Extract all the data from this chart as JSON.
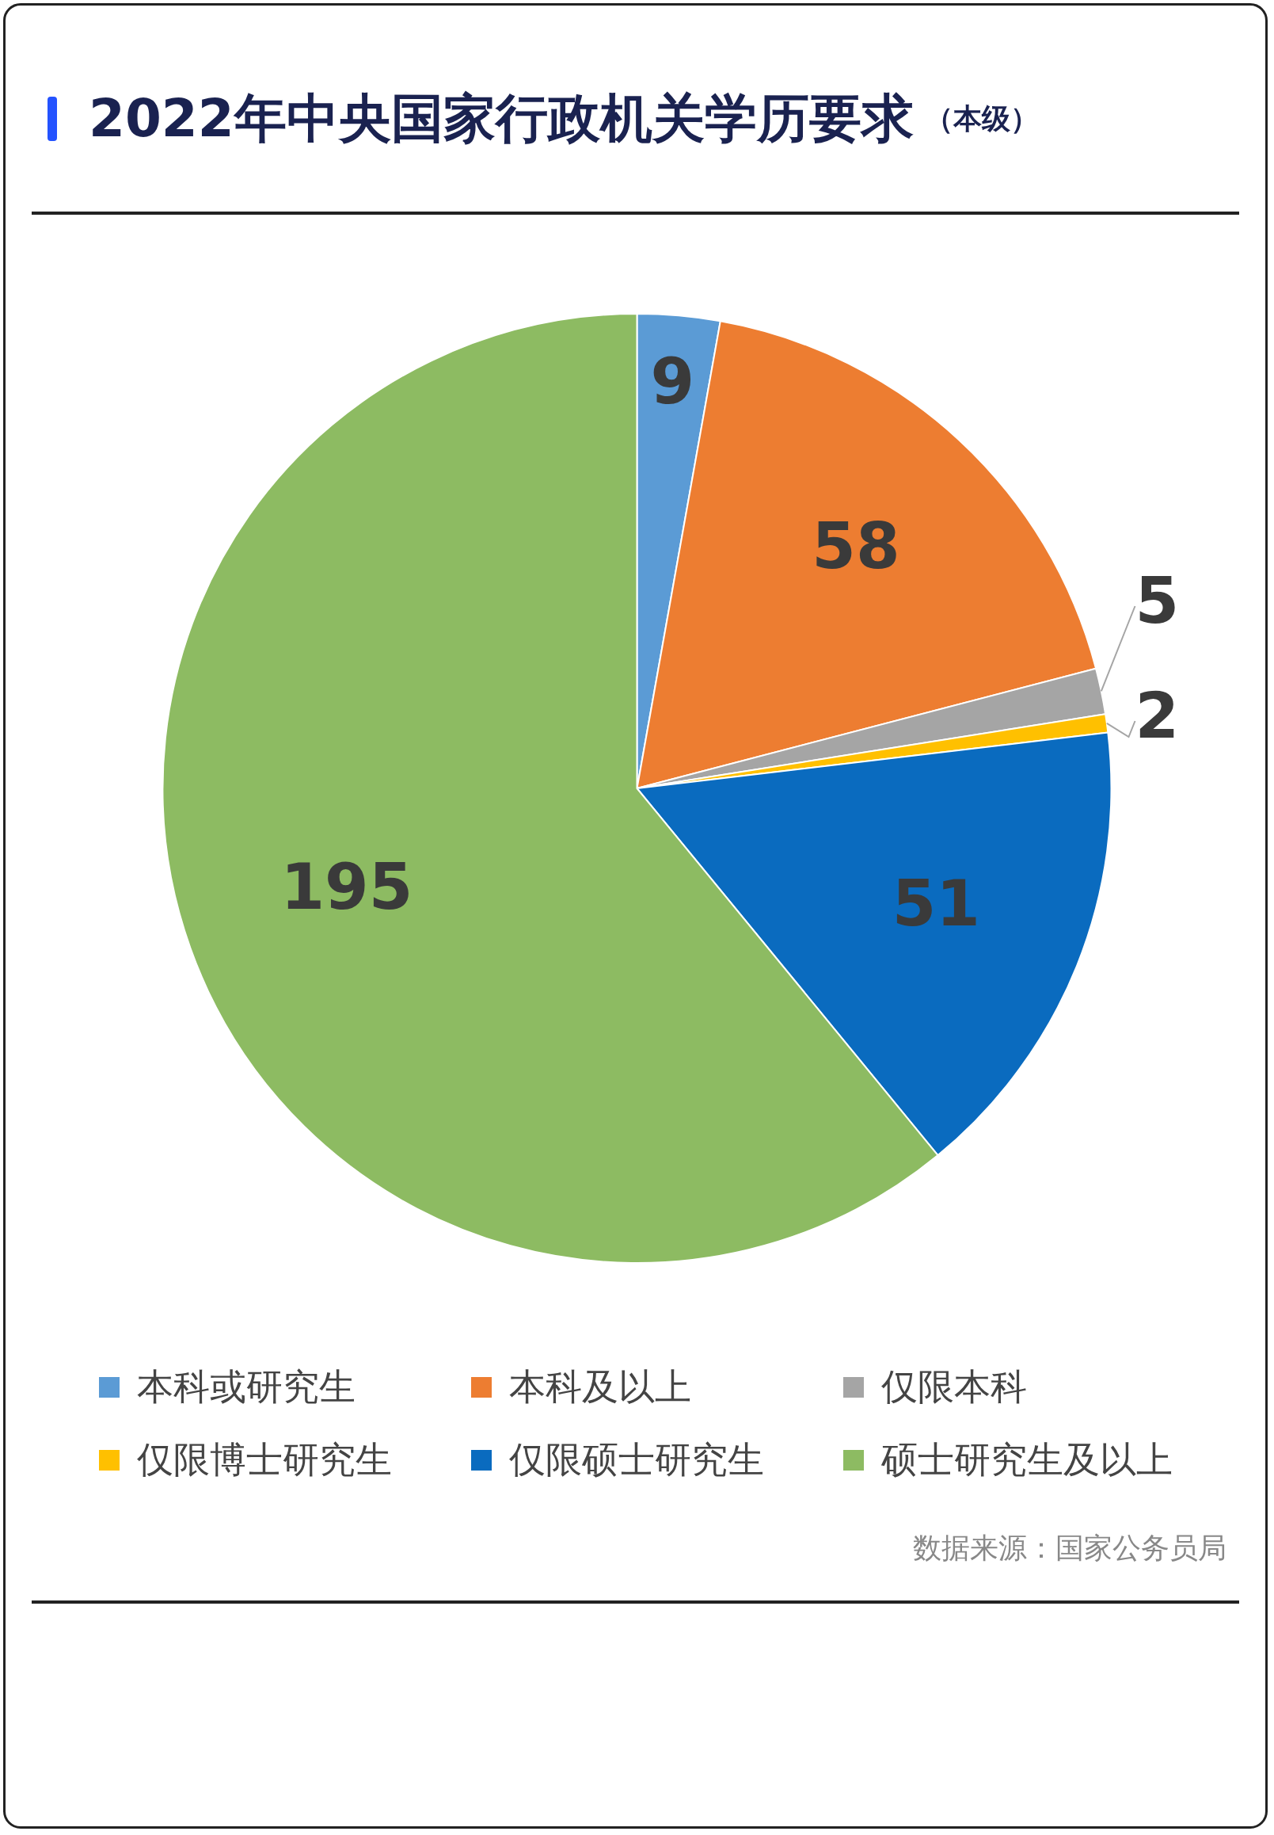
{
  "chart_data": {
    "type": "pie",
    "title": "2022年中央国家行政机关学历要求",
    "subtitle": "（本级）",
    "categories": [
      "本科或研究生",
      "本科及以上",
      "仅限本科",
      "仅限博士研究生",
      "仅限硕士研究生",
      "硕士研究生及以上"
    ],
    "values": [
      9,
      58,
      5,
      2,
      51,
      195
    ],
    "colors": [
      "#5b9bd5",
      "#ed7d31",
      "#a5a5a5",
      "#ffc000",
      "#0a6bbf",
      "#8dbb62"
    ],
    "data_labels": true,
    "legend": "bottom",
    "annotations": [
      "数据来源：国家公务员局"
    ]
  }
}
